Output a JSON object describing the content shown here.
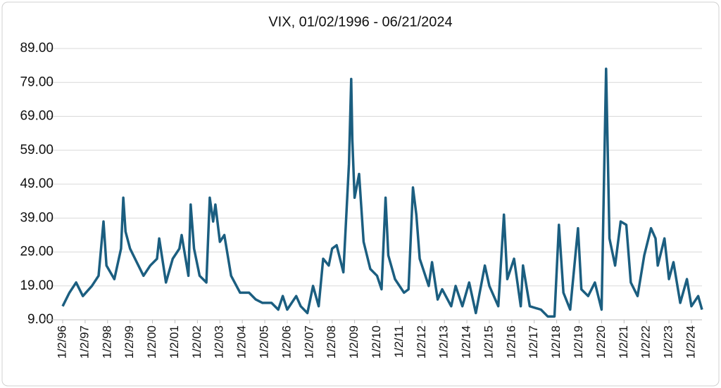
{
  "chart_data": {
    "type": "line",
    "title": "VIX, 01/02/1996 - 06/21/2024",
    "color": "#1b5e80",
    "grid": true,
    "x": [
      1996.0,
      1996.3,
      1996.6,
      1996.9,
      1997.3,
      1997.6,
      1997.82,
      1997.95,
      1998.3,
      1998.6,
      1998.7,
      1998.8,
      1999.0,
      1999.3,
      1999.6,
      1999.9,
      2000.2,
      2000.3,
      2000.6,
      2000.9,
      2001.2,
      2001.3,
      2001.6,
      2001.7,
      2001.85,
      2002.1,
      2002.4,
      2002.55,
      2002.7,
      2002.8,
      2003.0,
      2003.2,
      2003.5,
      2003.9,
      2004.3,
      2004.6,
      2004.9,
      2005.3,
      2005.6,
      2005.8,
      2006.0,
      2006.4,
      2006.6,
      2006.9,
      2007.15,
      2007.4,
      2007.6,
      2007.85,
      2008.0,
      2008.2,
      2008.5,
      2008.75,
      2008.85,
      2008.9,
      2009.0,
      2009.2,
      2009.4,
      2009.7,
      2010.0,
      2010.2,
      2010.38,
      2010.5,
      2010.8,
      2011.2,
      2011.4,
      2011.6,
      2011.75,
      2011.9,
      2012.3,
      2012.45,
      2012.7,
      2012.9,
      2013.3,
      2013.5,
      2013.8,
      2014.1,
      2014.4,
      2014.8,
      2015.0,
      2015.4,
      2015.65,
      2015.8,
      2016.1,
      2016.4,
      2016.5,
      2016.8,
      2017.3,
      2017.6,
      2017.9,
      2018.1,
      2018.3,
      2018.6,
      2018.95,
      2019.1,
      2019.4,
      2019.7,
      2020.0,
      2020.2,
      2020.35,
      2020.6,
      2020.85,
      2021.1,
      2021.3,
      2021.6,
      2021.9,
      2022.2,
      2022.4,
      2022.5,
      2022.8,
      2023.0,
      2023.2,
      2023.5,
      2023.8,
      2024.0,
      2024.3,
      2024.47
    ],
    "values": [
      13,
      17,
      20,
      16,
      19,
      22,
      38,
      25,
      21,
      30,
      45,
      35,
      30,
      26,
      22,
      25,
      27,
      33,
      20,
      27,
      30,
      34,
      22,
      43,
      30,
      22,
      20,
      45,
      38,
      43,
      32,
      34,
      22,
      17,
      17,
      15,
      14,
      14,
      12,
      16,
      12,
      16,
      13,
      11,
      19,
      13,
      27,
      25,
      30,
      31,
      23,
      55,
      80,
      62,
      45,
      52,
      32,
      24,
      22,
      18,
      45,
      28,
      21,
      17,
      18,
      48,
      40,
      27,
      19,
      26,
      15,
      18,
      13,
      19,
      13,
      20,
      11,
      25,
      19,
      13,
      40,
      21,
      27,
      13,
      25,
      13,
      12,
      10,
      10,
      37,
      17,
      12,
      36,
      18,
      16,
      20,
      12,
      83,
      33,
      25,
      38,
      37,
      20,
      16,
      28,
      36,
      33,
      25,
      33,
      21,
      26,
      14,
      21,
      13,
      16,
      12
    ],
    "xlim": [
      1996.0,
      2024.47
    ],
    "xticks": [
      {
        "value": 1996,
        "label": "1/2/96"
      },
      {
        "value": 1997,
        "label": "1/2/97"
      },
      {
        "value": 1998,
        "label": "1/2/98"
      },
      {
        "value": 1999,
        "label": "1/2/99"
      },
      {
        "value": 2000,
        "label": "1/2/00"
      },
      {
        "value": 2001,
        "label": "1/2/01"
      },
      {
        "value": 2002,
        "label": "1/2/02"
      },
      {
        "value": 2003,
        "label": "1/2/03"
      },
      {
        "value": 2004,
        "label": "1/2/04"
      },
      {
        "value": 2005,
        "label": "1/2/05"
      },
      {
        "value": 2006,
        "label": "1/2/06"
      },
      {
        "value": 2007,
        "label": "1/2/07"
      },
      {
        "value": 2008,
        "label": "1/2/08"
      },
      {
        "value": 2009,
        "label": "1/2/09"
      },
      {
        "value": 2010,
        "label": "1/2/10"
      },
      {
        "value": 2011,
        "label": "1/2/11"
      },
      {
        "value": 2012,
        "label": "1/2/12"
      },
      {
        "value": 2013,
        "label": "1/2/13"
      },
      {
        "value": 2014,
        "label": "1/2/14"
      },
      {
        "value": 2015,
        "label": "1/2/15"
      },
      {
        "value": 2016,
        "label": "1/2/16"
      },
      {
        "value": 2017,
        "label": "1/2/17"
      },
      {
        "value": 2018,
        "label": "1/2/18"
      },
      {
        "value": 2019,
        "label": "1/2/19"
      },
      {
        "value": 2020,
        "label": "1/2/20"
      },
      {
        "value": 2021,
        "label": "1/2/21"
      },
      {
        "value": 2022,
        "label": "1/2/22"
      },
      {
        "value": 2023,
        "label": "1/2/23"
      },
      {
        "value": 2024,
        "label": "1/2/24"
      }
    ],
    "ylim": [
      9,
      89
    ],
    "yticks": [
      {
        "value": 9,
        "label": "9.00"
      },
      {
        "value": 19,
        "label": "19.00"
      },
      {
        "value": 29,
        "label": "29.00"
      },
      {
        "value": 39,
        "label": "39.00"
      },
      {
        "value": 49,
        "label": "49.00"
      },
      {
        "value": 59,
        "label": "59.00"
      },
      {
        "value": 69,
        "label": "69.00"
      },
      {
        "value": 79,
        "label": "79.00"
      },
      {
        "value": 89,
        "label": "89.00"
      }
    ]
  }
}
